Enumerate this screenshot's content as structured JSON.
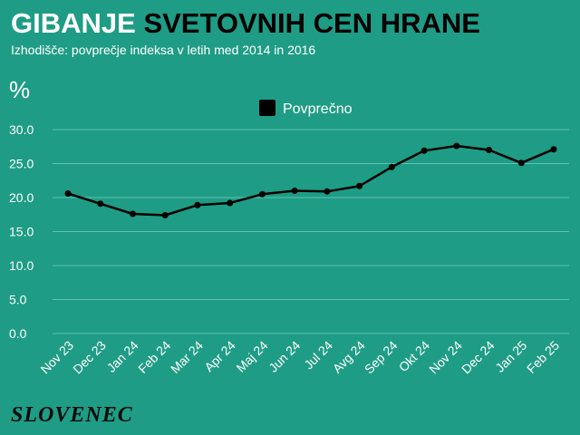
{
  "header": {
    "title_part1": "GIBANJE",
    "title_part2": "SVETOVNIH CEN HRANE",
    "subtitle": "Izhodišče: povprečje indeksa v letih med 2014 in 2016",
    "unit": "%"
  },
  "footer": {
    "logo_text": "SLOVENEC"
  },
  "colors": {
    "background": "#1f9c85",
    "line": "#000000",
    "grid": "#5fc2b0",
    "text": "#ffffff"
  },
  "chart_data": {
    "type": "line",
    "title": "GIBANJE SVETOVNIH CEN HRANE",
    "subtitle": "Izhodišče: povprečje indeksa v letih med 2014 in 2016",
    "ylabel": "%",
    "xlabel": "",
    "ylim": [
      0,
      30
    ],
    "yticks": [
      "0.0",
      "5.0",
      "10.0",
      "15.0",
      "20.0",
      "25.0",
      "30.0"
    ],
    "grid": true,
    "legend_position": "top-center",
    "categories": [
      "Nov 23",
      "Dec 23",
      "Jan 24",
      "Feb 24",
      "Mar 24",
      "Apr 24",
      "Maj 24",
      "Jun 24",
      "Jul 24",
      "Avg 24",
      "Sep 24",
      "Okt 24",
      "Nov 24",
      "Dec 24",
      "Jan 25",
      "Feb 25"
    ],
    "series": [
      {
        "name": "Povprečno",
        "values": [
          20.6,
          19.1,
          17.6,
          17.4,
          18.9,
          19.2,
          20.5,
          21.0,
          20.9,
          21.7,
          24.5,
          26.9,
          27.6,
          27.0,
          25.1,
          27.1
        ]
      }
    ]
  }
}
